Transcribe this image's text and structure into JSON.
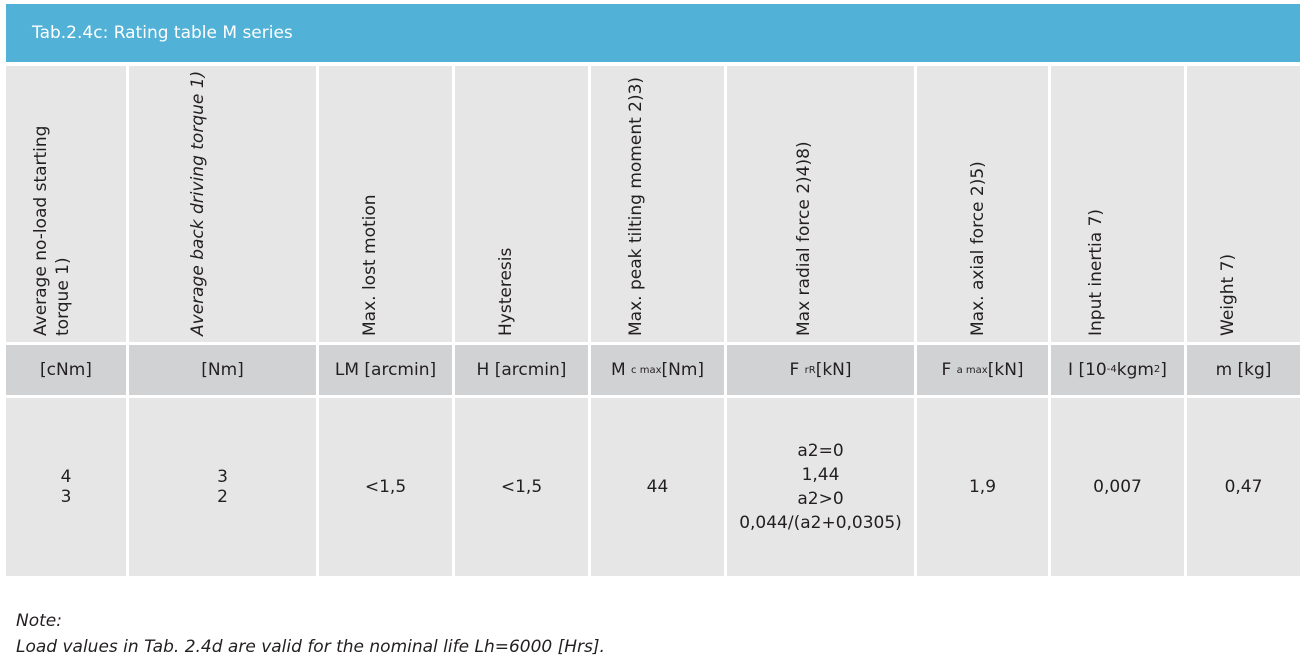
{
  "table": {
    "caption": "Tab.2.4c:  Rating table M series",
    "columns": [
      {
        "heading": [
          "Average no-load starting",
          "torque 1)"
        ],
        "italic": false,
        "unit": "[cNm]"
      },
      {
        "heading": [
          "Average back driving torque 1)"
        ],
        "italic": true,
        "unit": "[Nm]"
      },
      {
        "heading": [
          "Max. lost motion"
        ],
        "italic": false,
        "unit": "LM [arcmin]"
      },
      {
        "heading": [
          "Hysteresis"
        ],
        "italic": false,
        "unit": "H [arcmin]"
      },
      {
        "heading": [
          "Max. peak tilting moment 2)3)"
        ],
        "italic": false,
        "unit_main": "M",
        "unit_sub": "c max",
        "unit_tail": " [Nm]"
      },
      {
        "heading": [
          "Max radial force 2)4)8)"
        ],
        "italic": false,
        "unit_main": "F",
        "unit_sub": "rR",
        "unit_tail": " [kN]"
      },
      {
        "heading": [
          "Max. axial force 2)5)"
        ],
        "italic": false,
        "unit_main": "F",
        "unit_sub": "a max",
        "unit_tail": " [kN]"
      },
      {
        "heading": [
          "Input inertia 7)"
        ],
        "italic": false,
        "unit_main": "I [10",
        "unit_sup": "-4",
        "unit_mid": " kgm",
        "unit_sup2": "2",
        "unit_tail": "]"
      },
      {
        "heading": [
          "Weight 7)"
        ],
        "italic": false,
        "unit": "m  [kg]"
      }
    ],
    "values": {
      "starting_torque": [
        "4",
        "3"
      ],
      "back_driving_torque": [
        "3",
        "2"
      ],
      "lost_motion": "<1,5",
      "hysteresis": "<1,5",
      "tilting_moment": "44",
      "radial_force": [
        "a2=0",
        "1,44",
        "a2>0",
        "0,044/(a2+0,0305)"
      ],
      "axial_force": "1,9",
      "input_inertia": "0,007",
      "weight": "0,47"
    }
  },
  "note": {
    "label": "Note:",
    "text": "Load values in Tab. 2.4d are valid for the nominal life Lh=6000 [Hrs]."
  },
  "colors": {
    "header_bar": "#51b1d6",
    "heading_cell": "#e6e6e6",
    "unit_cell": "#d1d2d4",
    "value_cell": "#e6e6e6"
  }
}
